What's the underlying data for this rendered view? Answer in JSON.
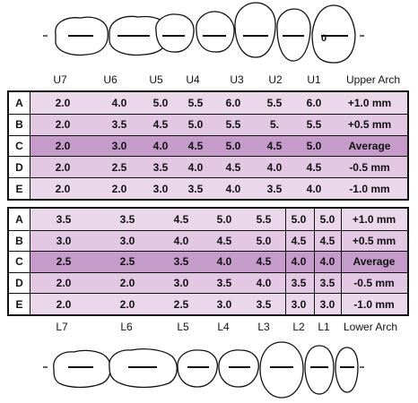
{
  "upper_labels": [
    "U7",
    "U6",
    "U5",
    "U4",
    "U3",
    "U2",
    "U1",
    "Upper Arch"
  ],
  "lower_labels": [
    "L7",
    "L6",
    "L5",
    "L4",
    "L3",
    "L2",
    "L1",
    "Lower Arch"
  ],
  "upper_rows": [
    {
      "label": "A",
      "values": [
        "2.0",
        "4.0",
        "5.0",
        "5.5",
        "6.0",
        "5.5",
        "6.0"
      ],
      "note": "+1.0 mm",
      "color": "#ead7ea"
    },
    {
      "label": "B",
      "values": [
        "2.0",
        "3.5",
        "4.5",
        "5.0",
        "5.5",
        "5.",
        "5.5"
      ],
      "note": "+0.5 mm",
      "color": "#e2c8e2"
    },
    {
      "label": "C",
      "values": [
        "2.0",
        "3.0",
        "4.0",
        "4.5",
        "5.0",
        "4.5",
        "5.0"
      ],
      "note": "Average",
      "color": "#c59cc9"
    },
    {
      "label": "D",
      "values": [
        "2.0",
        "2.5",
        "3.5",
        "4.0",
        "4.5",
        "4.0",
        "4.5"
      ],
      "note": "-0.5 mm",
      "color": "#e2c8e2"
    },
    {
      "label": "E",
      "values": [
        "2.0",
        "2.0",
        "3.0",
        "3.5",
        "4.0",
        "3.5",
        "4.0"
      ],
      "note": "-1.0 mm",
      "color": "#ead7ea"
    }
  ],
  "lower_rows": [
    {
      "label": "A",
      "values": [
        "3.5",
        "3.5",
        "4.5",
        "5.0",
        "5.5",
        "5.0",
        "5.0"
      ],
      "note": "+1.0 mm",
      "color": "#ead7ea"
    },
    {
      "label": "B",
      "values": [
        "3.0",
        "3.0",
        "4.0",
        "4.5",
        "5.0",
        "4.5",
        "4.5"
      ],
      "note": "+0.5 mm",
      "color": "#e2c8e2"
    },
    {
      "label": "C",
      "values": [
        "2.5",
        "2.5",
        "3.5",
        "4.0",
        "4.5",
        "4.0",
        "4.0"
      ],
      "note": "Average",
      "color": "#c59cc9"
    },
    {
      "label": "D",
      "values": [
        "2.0",
        "2.0",
        "3.0",
        "3.5",
        "4.0",
        "3.5",
        "3.5"
      ],
      "note": "-0.5 mm",
      "color": "#e2c8e2"
    },
    {
      "label": "E",
      "values": [
        "2.0",
        "2.0",
        "2.5",
        "3.0",
        "3.5",
        "3.0",
        "3.0"
      ],
      "note": "-1.0 mm",
      "color": "#ead7ea"
    }
  ],
  "stray_mark": "0",
  "colors": {
    "light": "#ead7ea",
    "mid": "#e2c8e2",
    "dark": "#c59cc9"
  }
}
